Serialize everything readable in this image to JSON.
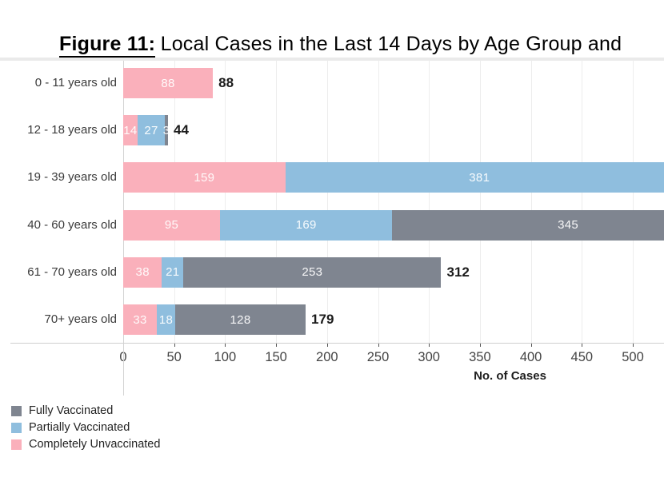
{
  "title": {
    "figure": "Figure 11:",
    "rest": "Local Cases in the Last 14 Days by Age Group and"
  },
  "chart_data": {
    "type": "bar",
    "orientation": "horizontal",
    "stacked": true,
    "title": "Figure 11: Local Cases in the Last 14 Days by Age Group and",
    "xlabel": "No. of Cases",
    "xlim": [
      0,
      530
    ],
    "x_ticks": [
      0,
      50,
      100,
      150,
      200,
      250,
      300,
      350,
      400,
      450,
      500
    ],
    "grid": "vertical-light",
    "categories": [
      "0 - 11 years old",
      "12 - 18 years old",
      "19 - 39 years old",
      "40 - 60 years old",
      "61 - 70 years old",
      "70+ years old"
    ],
    "series": [
      {
        "name": "Completely Unvaccinated",
        "color": "#fab0bb",
        "values": [
          88,
          14,
          159,
          95,
          38,
          33
        ]
      },
      {
        "name": "Partially Vaccinated",
        "color": "#8fbede",
        "values": [
          0,
          27,
          381,
          169,
          21,
          18
        ]
      },
      {
        "name": "Fully Vaccinated",
        "color": "#7f8590",
        "values": [
          0,
          3,
          null,
          345,
          253,
          128
        ]
      }
    ],
    "totals": [
      "88",
      "44",
      null,
      null,
      "312",
      "179"
    ],
    "note": "Bars for 19 - 39 and 40 - 60 extend past the right edge of the image; their totals are not visible."
  },
  "legend": {
    "items": [
      {
        "label": "Fully Vaccinated",
        "color": "#7f8590"
      },
      {
        "label": "Partially Vaccinated",
        "color": "#8fbede"
      },
      {
        "label": "Completely Unvaccinated",
        "color": "#fab0bb"
      }
    ]
  },
  "colors": {
    "pink": "#fab0bb",
    "blue": "#8fbede",
    "gray": "#7f8590",
    "gridline": "#ededed",
    "axis_line": "#d0d0d0",
    "bar_label": "#ffffff",
    "total_label": "#1b1b1b"
  }
}
